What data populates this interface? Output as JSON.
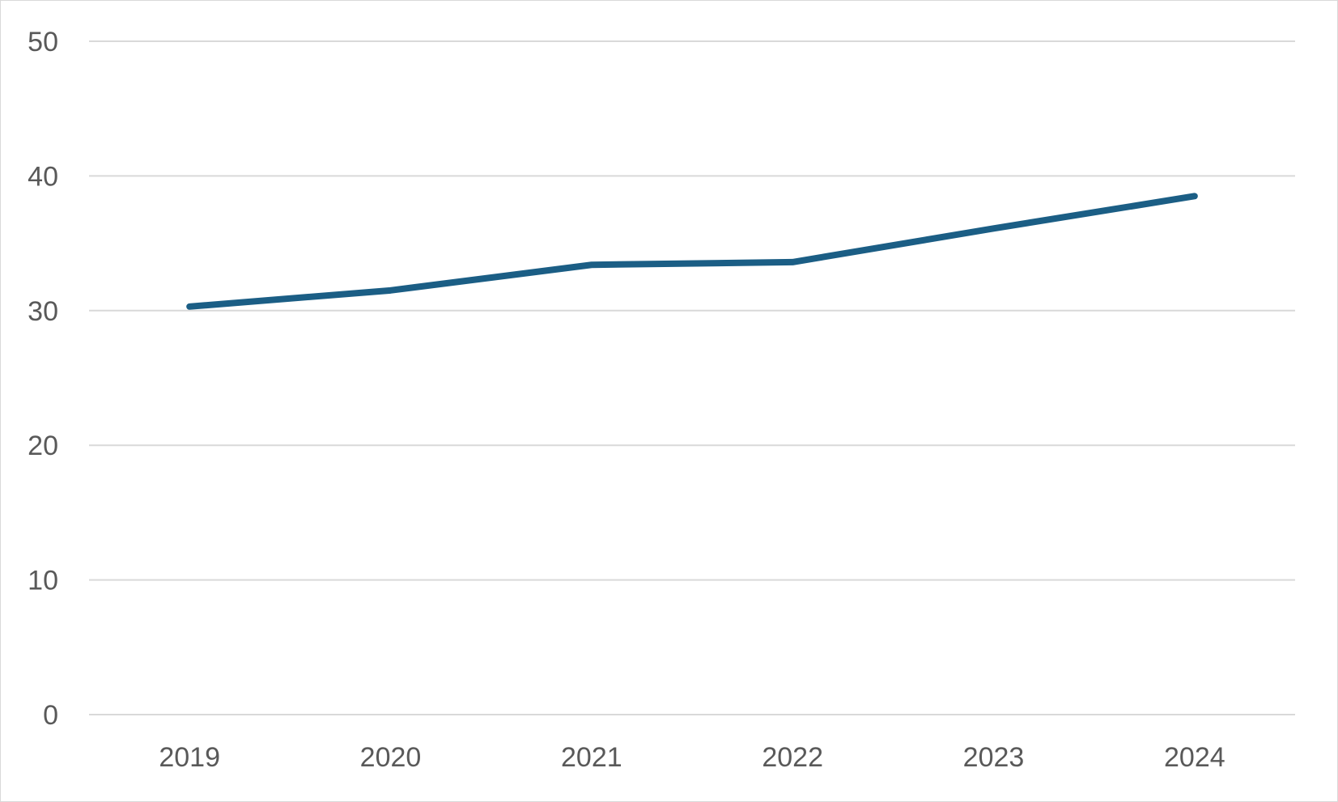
{
  "chart_data": {
    "type": "line",
    "categories": [
      "2019",
      "2020",
      "2021",
      "2022",
      "2023",
      "2024"
    ],
    "series": [
      {
        "values": [
          30.3,
          31.5,
          33.4,
          33.6,
          36.1,
          38.5
        ]
      }
    ],
    "yticks": [
      "0",
      "10",
      "20",
      "30",
      "40",
      "50"
    ],
    "ylim": [
      0,
      50
    ],
    "grid": true,
    "legend": "none",
    "colors": {
      "series": "#1b5e85",
      "grid": "#d9d9d9",
      "text": "#595959"
    }
  }
}
